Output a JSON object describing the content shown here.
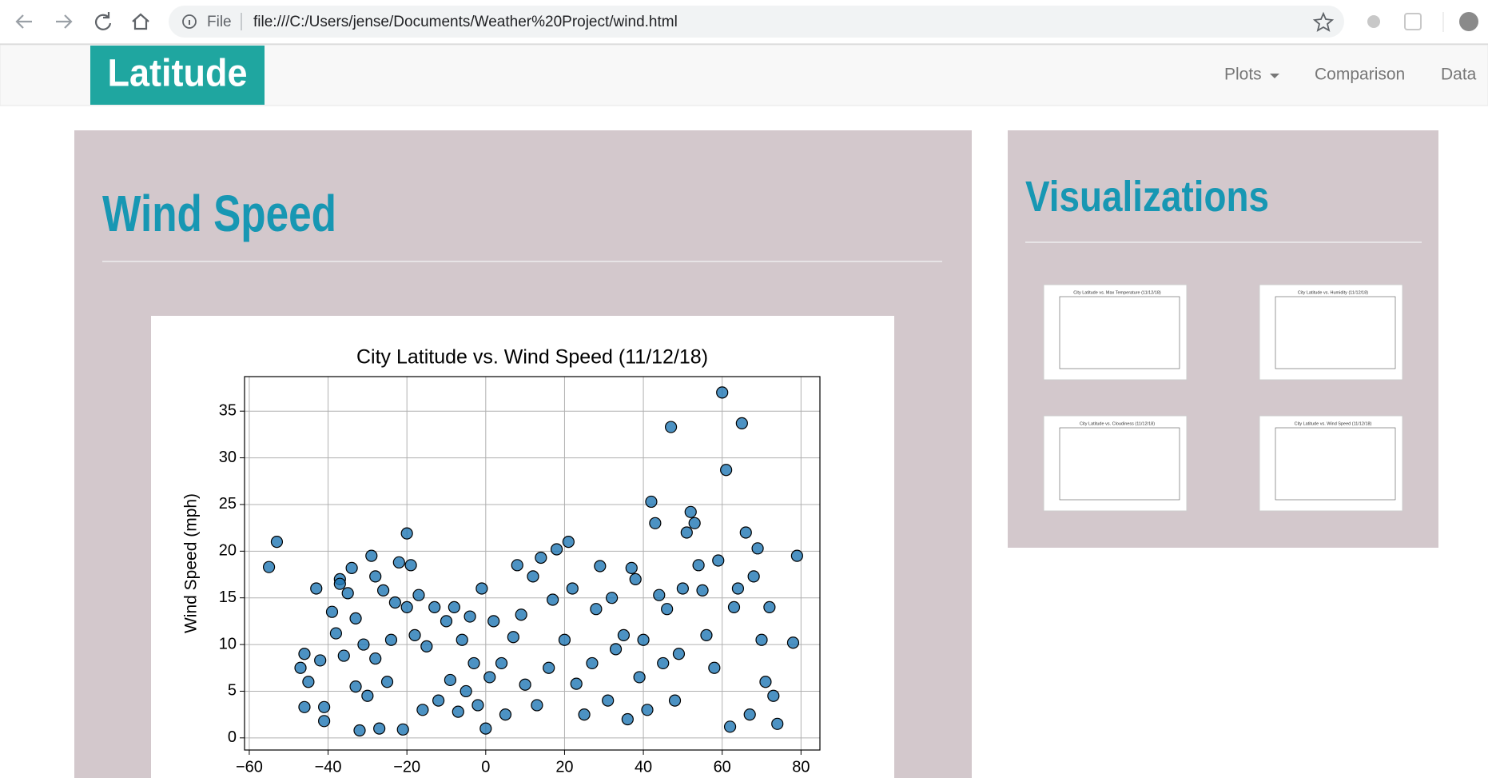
{
  "browser": {
    "scheme": "File",
    "url": "file:///C:/Users/jense/Documents/Weather%20Project/wind.html"
  },
  "navbar": {
    "brand": "Latitude",
    "links": [
      "Plots",
      "Comparison",
      "Data"
    ]
  },
  "main": {
    "heading": "Wind Speed"
  },
  "sidebar": {
    "heading": "Visualizations",
    "thumbnails": [
      "City Latitude vs. Max Temperature (11/12/18)",
      "City Latitude vs. Humidity (11/12/18)",
      "City Latitude vs. Cloudiness (11/12/18)",
      "City Latitude vs. Wind Speed (11/12/18)"
    ]
  },
  "chart_data": {
    "type": "scatter",
    "title": "City Latitude vs. Wind Speed (11/12/18)",
    "ylabel": "Wind Speed (mph)",
    "color": "#1f77b4",
    "grid": true,
    "xlim": [
      -61.2,
      84.8
    ],
    "ylim": [
      -1.3,
      38.7
    ],
    "xticks": [
      {
        "value": -60,
        "label": "−60"
      },
      {
        "value": -40,
        "label": "−40"
      },
      {
        "value": -20,
        "label": "−20"
      },
      0,
      20,
      40,
      60,
      80
    ],
    "yticks": [
      0,
      5,
      10,
      15,
      20,
      25,
      30,
      35
    ],
    "x": [
      -55,
      -53,
      -47,
      -46,
      -46,
      -45,
      -43,
      -42,
      -41,
      -41,
      -39,
      -38,
      -37,
      -37,
      -36,
      -35,
      -34,
      -33,
      -33,
      -32,
      -31,
      -30,
      -29,
      -28,
      -28,
      -27,
      -26,
      -25,
      -24,
      -23,
      -22,
      -21,
      -20,
      -20,
      -19,
      -18,
      -17,
      -16,
      -15,
      -13,
      -12,
      -10,
      -9,
      -8,
      -7,
      -6,
      -5,
      -4,
      -3,
      -2,
      -1,
      0,
      1,
      2,
      4,
      5,
      7,
      8,
      9,
      10,
      12,
      13,
      14,
      16,
      17,
      18,
      20,
      21,
      22,
      23,
      25,
      27,
      28,
      29,
      31,
      32,
      33,
      35,
      36,
      37,
      38,
      39,
      40,
      41,
      42,
      43,
      44,
      45,
      46,
      47,
      48,
      49,
      50,
      51,
      52,
      53,
      54,
      55,
      56,
      58,
      59,
      60,
      61,
      62,
      63,
      64,
      65,
      66,
      67,
      68,
      69,
      70,
      71,
      72,
      73,
      74,
      78,
      79
    ],
    "values": [
      18.3,
      21,
      7.5,
      9,
      3.3,
      6,
      16,
      8.3,
      1.8,
      3.3,
      13.5,
      11.2,
      17,
      16.5,
      8.8,
      15.5,
      18.2,
      12.8,
      5.5,
      0.8,
      10,
      4.5,
      19.5,
      17.3,
      8.5,
      1,
      15.8,
      6,
      10.5,
      14.5,
      18.8,
      0.9,
      21.9,
      14,
      18.5,
      11,
      15.3,
      3,
      9.8,
      14,
      4,
      12.5,
      6.2,
      14,
      2.8,
      10.5,
      5,
      13,
      8,
      3.5,
      16,
      1,
      6.5,
      12.5,
      8,
      2.5,
      10.8,
      18.5,
      13.2,
      5.7,
      17.3,
      3.5,
      19.3,
      7.5,
      14.8,
      20.2,
      10.5,
      21,
      16,
      5.8,
      2.5,
      8,
      13.8,
      18.4,
      4,
      15,
      9.5,
      11,
      2,
      18.2,
      17,
      6.5,
      10.5,
      3,
      25.3,
      23,
      15.3,
      8,
      13.8,
      33.3,
      4,
      9,
      16,
      22,
      24.2,
      23,
      18.5,
      15.8,
      11,
      7.5,
      19,
      37,
      28.7,
      1.2,
      14,
      16,
      33.7,
      22,
      2.5,
      17.3,
      20.3,
      10.5,
      6,
      14,
      4.5,
      1.5,
      10.2,
      19.5
    ]
  }
}
